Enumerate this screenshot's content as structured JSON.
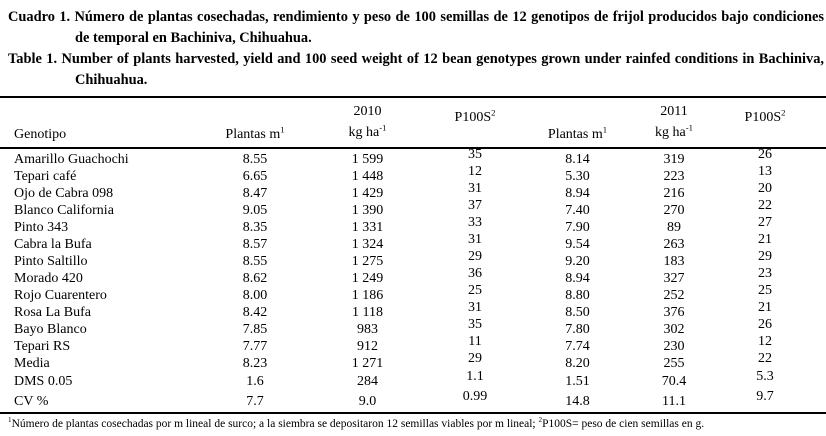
{
  "titles": {
    "es": "Cuadro 1. Número de plantas cosechadas, rendimiento y peso de 100 semillas de 12 genotipos de frijol producidos bajo condiciones de temporal en Bachiniva, Chihuahua.",
    "en": "Table 1. Number of plants harvested, yield and 100 seed weight of 12 bean genotypes grown under rainfed conditions in Bachiniva, Chihuahua."
  },
  "table": {
    "columns": [
      {
        "id": "genotipo",
        "label": "Genotipo",
        "sup": "",
        "year": ""
      },
      {
        "id": "plantas-2010",
        "label": "Plantas m",
        "sup": "1",
        "year": ""
      },
      {
        "id": "kgha-2010",
        "label": "kg ha",
        "sup": "-1",
        "year": "2010"
      },
      {
        "id": "p100s-2010",
        "label": "P100S",
        "sup": "2",
        "year": ""
      },
      {
        "id": "plantas-2011",
        "label": "Plantas m",
        "sup": "1",
        "year": ""
      },
      {
        "id": "kgha-2011",
        "label": "kg ha",
        "sup": "-1",
        "year": "2011"
      },
      {
        "id": "p100s-2011",
        "label": "P100S",
        "sup": "2",
        "year": ""
      }
    ],
    "rows": [
      [
        "Amarillo Guachochi",
        "8.55",
        "1 599",
        "35",
        "8.14",
        "319",
        "26"
      ],
      [
        "Tepari café",
        "6.65",
        "1 448",
        "12",
        "5.30",
        "223",
        "13"
      ],
      [
        "Ojo de Cabra 098",
        "8.47",
        "1 429",
        "31",
        "8.94",
        "216",
        "20"
      ],
      [
        "Blanco California",
        "9.05",
        "1 390",
        "37",
        "7.40",
        "270",
        "22"
      ],
      [
        "Pinto 343",
        "8.35",
        "1 331",
        "33",
        "7.90",
        "89",
        "27"
      ],
      [
        "Cabra la Bufa",
        "8.57",
        "1 324",
        "31",
        "9.54",
        "263",
        "21"
      ],
      [
        "Pinto Saltillo",
        "8.55",
        "1 275",
        "29",
        "9.20",
        "183",
        "29"
      ],
      [
        "Morado 420",
        "8.62",
        "1 249",
        "36",
        "8.94",
        "327",
        "23"
      ],
      [
        "Rojo Cuarentero",
        "8.00",
        "1 186",
        "25",
        "8.80",
        "252",
        "25"
      ],
      [
        "Rosa La Bufa",
        "8.42",
        "1 118",
        "31",
        "8.50",
        "376",
        "21"
      ],
      [
        "Bayo Blanco",
        "7.85",
        "983",
        "35",
        "7.80",
        "302",
        "26"
      ],
      [
        "Tepari RS",
        "7.77",
        "912",
        "11",
        "7.74",
        "230",
        "12"
      ],
      [
        "Media",
        "8.23",
        "1 271",
        "29",
        "8.20",
        "255",
        "22"
      ],
      [
        "DMS 0.05",
        "1.6",
        "284",
        "1.1",
        "1.51",
        "70.4",
        "5.3"
      ],
      [
        "CV %",
        "7.7",
        "9.0",
        "0.99",
        "14.8",
        "11.1",
        "9.7"
      ]
    ]
  },
  "footnote": {
    "parts": [
      {
        "sup": "1"
      },
      {
        "text": "Número de plantas cosechadas por m lineal de surco; a la siembra se depositaron 12 semillas viables por m lineal; "
      },
      {
        "sup": "2"
      },
      {
        "text": "P100S= peso de cien semillas en g."
      }
    ]
  }
}
